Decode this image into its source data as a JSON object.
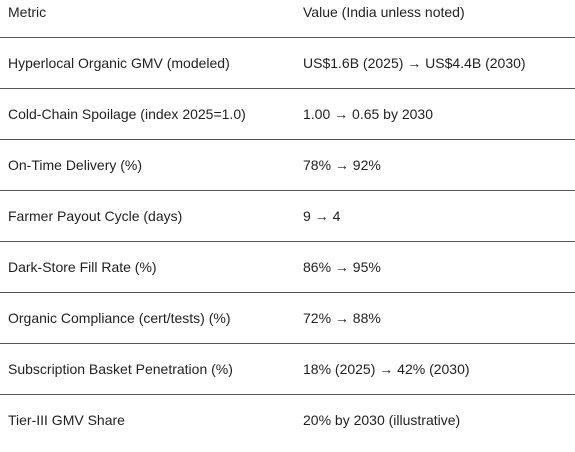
{
  "table": {
    "headers": [
      "Metric",
      "Value (India unless noted)"
    ],
    "rows": [
      [
        "Hyperlocal Organic GMV (modeled)",
        "US$1.6B (2025) → US$4.4B (2030)"
      ],
      [
        "Cold-Chain Spoilage (index 2025=1.0)",
        "1.00 → 0.65 by 2030"
      ],
      [
        "On-Time Delivery (%)",
        "78% → 92%"
      ],
      [
        "Farmer Payout Cycle (days)",
        "9 → 4"
      ],
      [
        "Dark-Store Fill Rate (%)",
        "86% → 95%"
      ],
      [
        "Organic Compliance (cert/tests) (%)",
        "72% → 88%"
      ],
      [
        "Subscription Basket Penetration (%)",
        "18% (2025) → 42% (2030)"
      ],
      [
        "Tier-III GMV Share",
        "20% by 2030 (illustrative)"
      ]
    ]
  }
}
